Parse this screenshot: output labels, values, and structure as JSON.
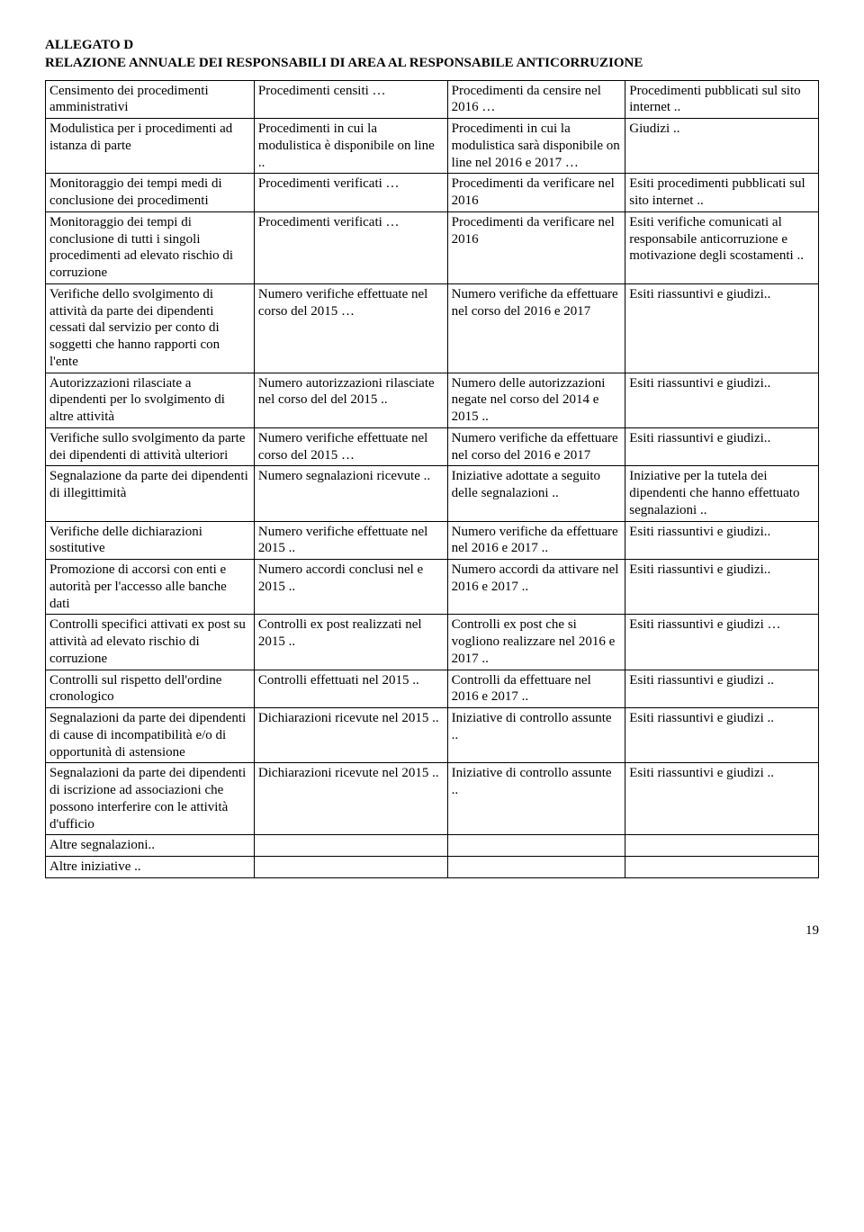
{
  "header": {
    "line1": "ALLEGATO D",
    "line2": "RELAZIONE ANNUALE DEI  RESPONSABILI DI AREA AL RESPONSABILE ANTICORRUZIONE"
  },
  "rows": [
    {
      "c1": "Censimento dei procedimenti amministrativi",
      "c2": "Procedimenti censiti …",
      "c3": "Procedimenti da censire nel 2016 …",
      "c4": "Procedimenti pubblicati sul sito internet .."
    },
    {
      "c1": "Modulistica per i procedimenti ad istanza di parte",
      "c2": "Procedimenti in cui la modulistica è disponibile on line ..",
      "c3": "Procedimenti in cui la modulistica sarà disponibile on line nel 2016 e 2017 …",
      "c4": "Giudizi .."
    },
    {
      "c1": "Monitoraggio dei tempi medi di conclusione dei procedimenti",
      "c2": "Procedimenti verificati …",
      "c3": "Procedimenti da verificare nel 2016",
      "c4": "Esiti procedimenti pubblicati sul sito internet .."
    },
    {
      "c1": "Monitoraggio dei tempi di conclusione di tutti i singoli procedimenti ad elevato rischio di corruzione",
      "c2": "Procedimenti verificati …",
      "c3": "Procedimenti da verificare nel 2016",
      "c4": "Esiti verifiche comunicati al responsabile anticorruzione e motivazione degli scostamenti .."
    },
    {
      "c1": "Verifiche dello svolgimento di attività da parte dei dipendenti cessati dal servizio per conto di soggetti che hanno rapporti con l'ente",
      "c2": "Numero verifiche effettuate nel corso del  2015 …",
      "c3": "Numero verifiche da effettuare nel corso del 2016 e 2017",
      "c4": "Esiti riassuntivi e giudizi.."
    },
    {
      "c1": "Autorizzazioni rilasciate a dipendenti per lo svolgimento di altre attività",
      "c2": "Numero autorizzazioni rilasciate nel corso del  del 2015 ..",
      "c3": "Numero delle autorizzazioni negate nel corso del 2014 e 2015 ..",
      "c4": "Esiti riassuntivi e giudizi.."
    },
    {
      "c1": "Verifiche sullo svolgimento da parte dei dipendenti di attività ulteriori",
      "c2": "Numero verifiche effettuate nel corso del  2015 …",
      "c3": "Numero verifiche da effettuare nel corso del 2016 e 2017",
      "c4": "Esiti riassuntivi e giudizi.."
    },
    {
      "c1": "Segnalazione da parte dei dipendenti di illegittimità",
      "c2": "Numero segnalazioni ricevute ..",
      "c3": "Iniziative adottate a seguito delle segnalazioni ..",
      "c4": "Iniziative per la tutela dei dipendenti che hanno effettuato segnalazioni .."
    },
    {
      "c1": "Verifiche delle dichiarazioni sostitutive",
      "c2": "Numero verifiche effettuate nel 2015 ..",
      "c3": "Numero verifiche da effettuare nel 2016 e 2017 ..",
      "c4": "Esiti riassuntivi e giudizi.."
    },
    {
      "c1": "Promozione di accorsi con enti e autorità per l'accesso alle banche dati",
      "c2": "Numero accordi conclusi nel e 2015 ..",
      "c3": "Numero accordi da attivare nel 2016 e 2017 ..",
      "c4": "Esiti riassuntivi e giudizi.."
    },
    {
      "c1": "Controlli specifici attivati ex post su attività ad elevato rischio di corruzione",
      "c2": "Controlli ex post realizzati nel 2015 ..",
      "c3": "Controlli ex post che si vogliono realizzare nel 2016 e 2017 ..",
      "c4": "Esiti riassuntivi e giudizi …"
    },
    {
      "c1": "Controlli sul rispetto dell'ordine cronologico",
      "c2": "Controlli effettuati nel  2015 ..",
      "c3": "Controlli da effettuare nel 2016 e 2017 ..",
      "c4": "Esiti riassuntivi e giudizi .."
    },
    {
      "c1": "Segnalazioni da parte dei dipendenti di cause di incompatibilità e/o di opportunità di astensione",
      "c2": "Dichiarazioni ricevute nel 2015 ..",
      "c3": "Iniziative di controllo assunte ..",
      "c4": "Esiti riassuntivi e giudizi .."
    },
    {
      "c1": "Segnalazioni da parte dei dipendenti di iscrizione ad associazioni che possono interferire con le attività d'ufficio",
      "c2": "Dichiarazioni ricevute nel 2015 ..",
      "c3": "Iniziative di controllo assunte ..",
      "c4": "Esiti riassuntivi e giudizi .."
    },
    {
      "c1": "Altre segnalazioni..",
      "c2": "",
      "c3": "",
      "c4": ""
    },
    {
      "c1": "Altre iniziative ..",
      "c2": "",
      "c3": "",
      "c4": ""
    }
  ],
  "pageNumber": "19"
}
